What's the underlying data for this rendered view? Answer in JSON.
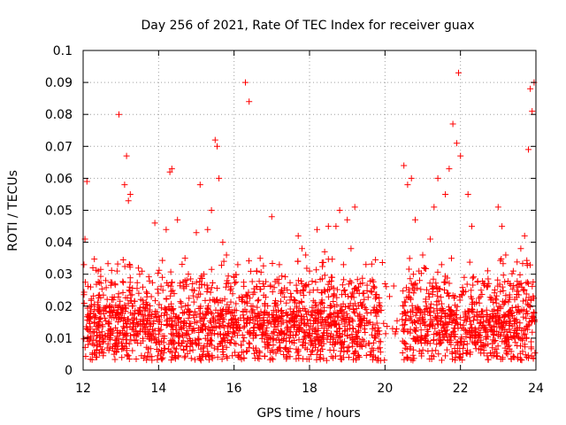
{
  "chart_data": {
    "type": "scatter",
    "title": "Day 256 of 2021, Rate Of TEC Index for receiver guax",
    "xlabel": "GPS time / hours",
    "ylabel": "ROTI / TECUs",
    "xlim": [
      12,
      24
    ],
    "ylim": [
      0,
      0.1
    ],
    "x_ticks": [
      12,
      14,
      16,
      18,
      20,
      22,
      24
    ],
    "x_tick_labels": [
      "12",
      "14",
      "16",
      "18",
      "20",
      "22",
      "24"
    ],
    "y_ticks": [
      0,
      0.01,
      0.02,
      0.03,
      0.04,
      0.05,
      0.06,
      0.07,
      0.08,
      0.09,
      0.1
    ],
    "y_tick_labels": [
      "0",
      "0.01",
      "0.02",
      "0.03",
      "0.04",
      "0.05",
      "0.06",
      "0.07",
      "0.08",
      "0.09",
      "0.1"
    ],
    "grid": true,
    "marker": "+",
    "marker_color": "#ff0000",
    "series": [
      {
        "name": "ROTI",
        "note": "dense scatter; representative sampled points",
        "x": [
          12.02,
          12.05,
          12.1,
          12.2,
          12.3,
          12.4,
          12.5,
          12.6,
          12.7,
          12.8,
          12.9,
          12.95,
          13.0,
          13.1,
          13.15,
          13.2,
          13.25,
          13.3,
          13.4,
          13.5,
          13.6,
          13.7,
          13.8,
          13.9,
          14.0,
          14.1,
          14.2,
          14.3,
          14.35,
          14.5,
          14.6,
          14.7,
          14.8,
          14.9,
          15.0,
          15.1,
          15.2,
          15.3,
          15.4,
          15.5,
          15.55,
          15.6,
          15.7,
          15.8,
          15.9,
          16.0,
          16.1,
          16.2,
          16.3,
          16.4,
          16.5,
          16.6,
          16.8,
          17.0,
          17.1,
          17.2,
          17.3,
          17.5,
          17.7,
          17.8,
          17.9,
          18.0,
          18.1,
          18.2,
          18.3,
          18.4,
          18.5,
          18.6,
          18.7,
          18.8,
          18.9,
          19.0,
          19.1,
          19.2,
          19.3,
          19.4,
          19.5,
          19.6,
          19.8,
          20.0,
          20.2,
          20.5,
          20.6,
          20.7,
          20.8,
          20.9,
          21.0,
          21.1,
          21.2,
          21.3,
          21.4,
          21.5,
          21.6,
          21.7,
          21.8,
          21.9,
          21.95,
          22.0,
          22.1,
          22.2,
          22.3,
          22.5,
          22.7,
          22.9,
          23.0,
          23.1,
          23.2,
          23.3,
          23.4,
          23.5,
          23.6,
          23.7,
          23.8,
          23.85,
          23.9,
          23.95
        ],
        "y": [
          0.033,
          0.041,
          0.059,
          0.026,
          0.015,
          0.031,
          0.012,
          0.028,
          0.01,
          0.022,
          0.031,
          0.08,
          0.018,
          0.058,
          0.067,
          0.053,
          0.055,
          0.02,
          0.012,
          0.03,
          0.016,
          0.024,
          0.011,
          0.046,
          0.013,
          0.029,
          0.044,
          0.062,
          0.063,
          0.047,
          0.021,
          0.035,
          0.018,
          0.027,
          0.043,
          0.058,
          0.03,
          0.044,
          0.05,
          0.072,
          0.07,
          0.06,
          0.04,
          0.036,
          0.025,
          0.029,
          0.033,
          0.022,
          0.09,
          0.084,
          0.02,
          0.031,
          0.018,
          0.048,
          0.021,
          0.033,
          0.015,
          0.024,
          0.042,
          0.038,
          0.036,
          0.031,
          0.025,
          0.044,
          0.018,
          0.037,
          0.045,
          0.029,
          0.045,
          0.05,
          0.033,
          0.047,
          0.038,
          0.051,
          0.026,
          0.02,
          0.019,
          0.015,
          0.012,
          0.027,
          0.013,
          0.064,
          0.058,
          0.06,
          0.047,
          0.031,
          0.036,
          0.02,
          0.041,
          0.051,
          0.06,
          0.033,
          0.055,
          0.063,
          0.077,
          0.071,
          0.093,
          0.067,
          0.029,
          0.055,
          0.045,
          0.021,
          0.026,
          0.012,
          0.051,
          0.045,
          0.036,
          0.014,
          0.031,
          0.026,
          0.038,
          0.042,
          0.069,
          0.088,
          0.081,
          0.09
        ]
      }
    ]
  }
}
